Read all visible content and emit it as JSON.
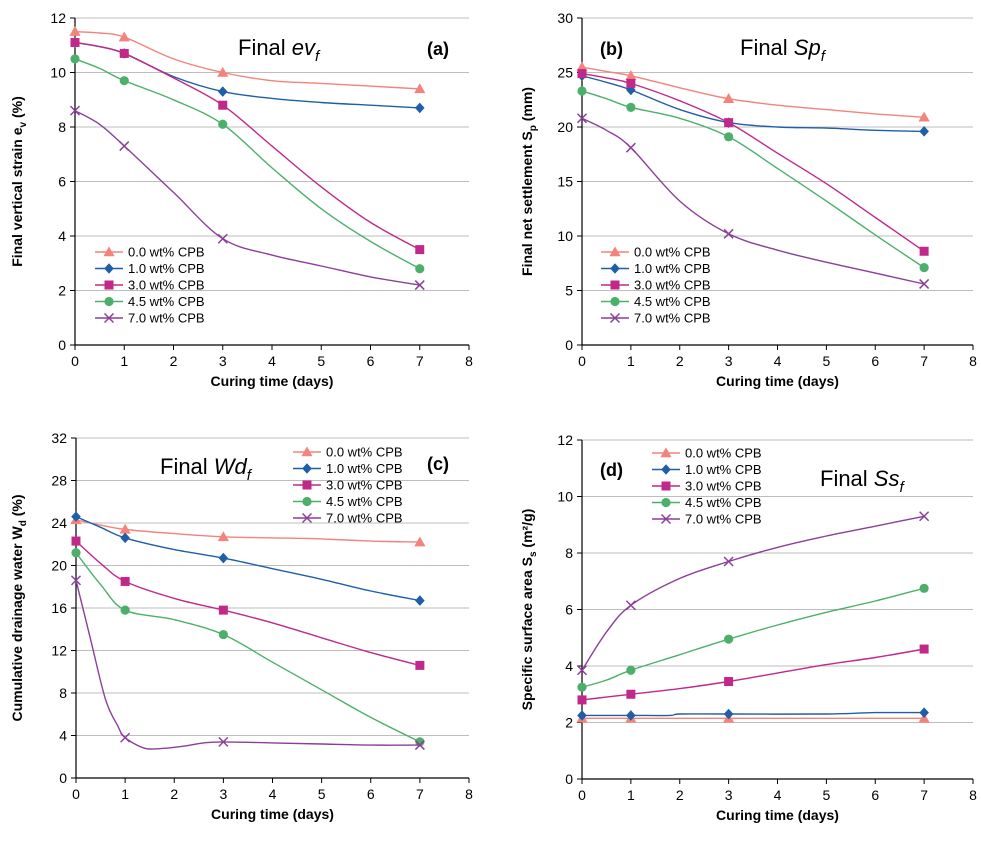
{
  "series_styles": [
    {
      "color": "#f4837b",
      "marker": "triangle"
    },
    {
      "color": "#1f5fa8",
      "marker": "diamond"
    },
    {
      "color": "#c0288a",
      "marker": "square"
    },
    {
      "color": "#4cb06a",
      "marker": "circle"
    },
    {
      "color": "#8b3f98",
      "marker": "x"
    }
  ],
  "chart_data": [
    {
      "type": "line",
      "panel": "(a)",
      "inset_title": {
        "prefix": "Final ",
        "main": "ev",
        "sub": "f"
      },
      "xlabel": "Curing time (days)",
      "ylabel": {
        "text": "Final vertical strain   e",
        "sub": "v",
        "tail": " (%)"
      },
      "xlim": [
        0,
        8
      ],
      "ylim": [
        0,
        12
      ],
      "xticks": [
        0,
        1,
        2,
        3,
        4,
        5,
        6,
        7,
        8
      ],
      "yticks": [
        0,
        2,
        4,
        6,
        8,
        10,
        12
      ],
      "grid": "horizontal",
      "legend_position": "bottom-left",
      "x": [
        0,
        1,
        3,
        7
      ],
      "series": [
        {
          "name": "0.0 wt% CPB",
          "values": [
            11.5,
            11.3,
            10.0,
            9.4
          ],
          "curve": [
            [
              0,
              11.5
            ],
            [
              0.5,
              11.45
            ],
            [
              1,
              11.3
            ],
            [
              2,
              10.5
            ],
            [
              3,
              10.0
            ],
            [
              4,
              9.7
            ],
            [
              5,
              9.6
            ],
            [
              6,
              9.5
            ],
            [
              7,
              9.4
            ]
          ]
        },
        {
          "name": "1.0 wt% CPB",
          "values": [
            11.1,
            10.7,
            9.3,
            8.7
          ],
          "curve": [
            [
              0,
              11.1
            ],
            [
              0.5,
              10.95
            ],
            [
              1,
              10.7
            ],
            [
              2,
              9.85
            ],
            [
              3,
              9.3
            ],
            [
              4,
              9.05
            ],
            [
              5,
              8.9
            ],
            [
              6,
              8.8
            ],
            [
              7,
              8.7
            ]
          ]
        },
        {
          "name": "3.0 wt% CPB",
          "values": [
            11.1,
            10.7,
            8.8,
            3.5
          ],
          "curve": [
            [
              0,
              11.1
            ],
            [
              0.5,
              10.95
            ],
            [
              1,
              10.7
            ],
            [
              2,
              9.8
            ],
            [
              3,
              8.8
            ],
            [
              4,
              7.3
            ],
            [
              5,
              5.8
            ],
            [
              6,
              4.5
            ],
            [
              7,
              3.5
            ]
          ]
        },
        {
          "name": "4.5 wt% CPB",
          "values": [
            10.5,
            9.7,
            8.1,
            2.8
          ],
          "curve": [
            [
              0,
              10.5
            ],
            [
              0.5,
              10.15
            ],
            [
              1,
              9.7
            ],
            [
              2,
              9.0
            ],
            [
              3,
              8.1
            ],
            [
              4,
              6.5
            ],
            [
              5,
              5.0
            ],
            [
              6,
              3.8
            ],
            [
              7,
              2.8
            ]
          ]
        },
        {
          "name": "7.0 wt% CPB",
          "values": [
            8.6,
            7.3,
            3.9,
            2.2
          ],
          "curve": [
            [
              0,
              8.6
            ],
            [
              0.5,
              8.1
            ],
            [
              1,
              7.3
            ],
            [
              2,
              5.6
            ],
            [
              3,
              3.9
            ],
            [
              4,
              3.3
            ],
            [
              5,
              2.9
            ],
            [
              6,
              2.5
            ],
            [
              7,
              2.2
            ]
          ]
        }
      ]
    },
    {
      "type": "line",
      "panel": "(b)",
      "inset_title": {
        "prefix": "Final ",
        "main": "Sp",
        "sub": "f"
      },
      "xlabel": "Curing time (days)",
      "ylabel": {
        "text": "Final net settlement   S",
        "sub": "p",
        "tail": " (mm)"
      },
      "xlim": [
        0,
        8
      ],
      "ylim": [
        0,
        30
      ],
      "xticks": [
        0,
        1,
        2,
        3,
        4,
        5,
        6,
        7,
        8
      ],
      "yticks": [
        0,
        5,
        10,
        15,
        20,
        25,
        30
      ],
      "grid": "horizontal",
      "legend_position": "bottom-left",
      "x": [
        0,
        1,
        3,
        7
      ],
      "series": [
        {
          "name": "0.0 wt% CPB",
          "values": [
            25.5,
            24.7,
            22.6,
            20.9
          ],
          "curve": [
            [
              0,
              25.5
            ],
            [
              0.5,
              25.1
            ],
            [
              1,
              24.7
            ],
            [
              2,
              23.6
            ],
            [
              3,
              22.6
            ],
            [
              4,
              22.0
            ],
            [
              5,
              21.6
            ],
            [
              6,
              21.2
            ],
            [
              7,
              20.9
            ]
          ]
        },
        {
          "name": "1.0 wt% CPB",
          "values": [
            24.7,
            23.4,
            20.4,
            19.6
          ],
          "curve": [
            [
              0,
              24.7
            ],
            [
              0.5,
              24.1
            ],
            [
              1,
              23.4
            ],
            [
              2,
              21.6
            ],
            [
              3,
              20.4
            ],
            [
              4,
              20.0
            ],
            [
              5,
              19.9
            ],
            [
              6,
              19.7
            ],
            [
              7,
              19.6
            ]
          ]
        },
        {
          "name": "3.0 wt% CPB",
          "values": [
            24.9,
            24.0,
            20.4,
            8.6
          ],
          "curve": [
            [
              0,
              24.9
            ],
            [
              0.5,
              24.5
            ],
            [
              1,
              24.0
            ],
            [
              2,
              22.4
            ],
            [
              3,
              20.4
            ],
            [
              4,
              17.6
            ],
            [
              5,
              14.8
            ],
            [
              6,
              11.7
            ],
            [
              7,
              8.6
            ]
          ]
        },
        {
          "name": "4.5 wt% CPB",
          "values": [
            23.3,
            21.8,
            19.1,
            7.1
          ],
          "curve": [
            [
              0,
              23.3
            ],
            [
              0.5,
              22.6
            ],
            [
              1,
              21.8
            ],
            [
              2,
              20.8
            ],
            [
              3,
              19.1
            ],
            [
              4,
              16.2
            ],
            [
              5,
              13.2
            ],
            [
              6,
              10.1
            ],
            [
              7,
              7.1
            ]
          ]
        },
        {
          "name": "7.0 wt% CPB",
          "values": [
            20.8,
            18.1,
            10.2,
            5.6
          ],
          "curve": [
            [
              0,
              20.8
            ],
            [
              0.5,
              19.7
            ],
            [
              1,
              18.1
            ],
            [
              2,
              13.2
            ],
            [
              3,
              10.2
            ],
            [
              4,
              8.7
            ],
            [
              5,
              7.6
            ],
            [
              6,
              6.6
            ],
            [
              7,
              5.6
            ]
          ]
        }
      ]
    },
    {
      "type": "line",
      "panel": "(c)",
      "inset_title": {
        "prefix": "Final ",
        "main": "Wd",
        "sub": "f"
      },
      "xlabel": "Curing time (days)",
      "ylabel": {
        "text": "Cumulative drainage water W",
        "sub": "d",
        "tail": " (%)"
      },
      "xlim": [
        0,
        8
      ],
      "ylim": [
        0,
        32
      ],
      "xticks": [
        0,
        1,
        2,
        3,
        4,
        5,
        6,
        7,
        8
      ],
      "yticks": [
        0,
        4,
        8,
        12,
        16,
        20,
        24,
        28,
        32
      ],
      "grid": "horizontal",
      "legend_position": "top-right",
      "x": [
        0,
        1,
        3,
        7
      ],
      "series": [
        {
          "name": "0.0 wt% CPB",
          "values": [
            24.3,
            23.4,
            22.7,
            22.2
          ],
          "curve": [
            [
              0,
              24.3
            ],
            [
              0.5,
              23.8
            ],
            [
              1,
              23.4
            ],
            [
              2,
              23.0
            ],
            [
              3,
              22.7
            ],
            [
              4,
              22.6
            ],
            [
              5,
              22.5
            ],
            [
              6,
              22.3
            ],
            [
              7,
              22.2
            ]
          ]
        },
        {
          "name": "1.0 wt% CPB",
          "values": [
            24.6,
            22.6,
            20.7,
            16.7
          ],
          "curve": [
            [
              0,
              24.6
            ],
            [
              0.5,
              23.6
            ],
            [
              1,
              22.6
            ],
            [
              2,
              21.5
            ],
            [
              3,
              20.7
            ],
            [
              4,
              19.7
            ],
            [
              5,
              18.7
            ],
            [
              6,
              17.6
            ],
            [
              7,
              16.7
            ]
          ]
        },
        {
          "name": "3.0 wt% CPB",
          "values": [
            22.3,
            18.5,
            15.8,
            10.6
          ],
          "curve": [
            [
              0,
              22.3
            ],
            [
              0.5,
              20.2
            ],
            [
              1,
              18.5
            ],
            [
              2,
              16.9
            ],
            [
              3,
              15.8
            ],
            [
              4,
              14.6
            ],
            [
              5,
              13.2
            ],
            [
              6,
              11.8
            ],
            [
              7,
              10.6
            ]
          ]
        },
        {
          "name": "4.5 wt% CPB",
          "values": [
            21.2,
            15.8,
            13.5,
            3.4
          ],
          "curve": [
            [
              0,
              21.2
            ],
            [
              0.5,
              18.2
            ],
            [
              1,
              15.8
            ],
            [
              2,
              14.9
            ],
            [
              3,
              13.5
            ],
            [
              4,
              10.9
            ],
            [
              5,
              8.3
            ],
            [
              6,
              5.7
            ],
            [
              7,
              3.4
            ]
          ]
        },
        {
          "name": "7.0 wt% CPB",
          "values": [
            18.6,
            3.8,
            3.4,
            3.1
          ],
          "curve": [
            [
              0,
              18.6
            ],
            [
              0.3,
              13.0
            ],
            [
              0.6,
              7.4
            ],
            [
              0.85,
              4.9
            ],
            [
              1,
              3.8
            ],
            [
              1.4,
              2.8
            ],
            [
              1.8,
              2.8
            ],
            [
              2.2,
              3.0
            ],
            [
              2.6,
              3.3
            ],
            [
              3,
              3.4
            ],
            [
              4,
              3.3
            ],
            [
              5,
              3.2
            ],
            [
              6,
              3.1
            ],
            [
              7,
              3.1
            ]
          ]
        }
      ]
    },
    {
      "type": "line",
      "panel": "(d)",
      "inset_title": {
        "prefix": "Final ",
        "main": "Ss",
        "sub": "f"
      },
      "xlabel": "Curing time (days)",
      "ylabel": {
        "text": "Specific surface area   S",
        "sub": "s",
        "tail": " (m²/g)"
      },
      "xlim": [
        0,
        8
      ],
      "ylim": [
        0,
        12
      ],
      "xticks": [
        0,
        1,
        2,
        3,
        4,
        5,
        6,
        7,
        8
      ],
      "yticks": [
        0,
        2,
        4,
        6,
        8,
        10,
        12
      ],
      "grid": "horizontal",
      "legend_position": "top-left",
      "x": [
        0,
        1,
        3,
        7
      ],
      "series": [
        {
          "name": "0.0 wt% CPB",
          "values": [
            2.15,
            2.15,
            2.15,
            2.15
          ],
          "curve": [
            [
              0,
              2.15
            ],
            [
              1,
              2.15
            ],
            [
              2,
              2.15
            ],
            [
              3,
              2.15
            ],
            [
              4,
              2.15
            ],
            [
              5,
              2.15
            ],
            [
              6,
              2.15
            ],
            [
              7,
              2.15
            ]
          ]
        },
        {
          "name": "1.0 wt% CPB",
          "values": [
            2.25,
            2.25,
            2.3,
            2.35
          ],
          "curve": [
            [
              0,
              2.25
            ],
            [
              1,
              2.25
            ],
            [
              1.8,
              2.25
            ],
            [
              2,
              2.3
            ],
            [
              3,
              2.3
            ],
            [
              5,
              2.3
            ],
            [
              6,
              2.35
            ],
            [
              7,
              2.35
            ]
          ]
        },
        {
          "name": "3.0 wt% CPB",
          "values": [
            2.8,
            3.0,
            3.45,
            4.6
          ],
          "curve": [
            [
              0,
              2.8
            ],
            [
              0.5,
              2.9
            ],
            [
              1,
              3.0
            ],
            [
              2,
              3.2
            ],
            [
              3,
              3.45
            ],
            [
              4,
              3.75
            ],
            [
              5,
              4.05
            ],
            [
              6,
              4.3
            ],
            [
              7,
              4.6
            ]
          ]
        },
        {
          "name": "4.5 wt% CPB",
          "values": [
            3.25,
            3.85,
            4.95,
            6.75
          ],
          "curve": [
            [
              0,
              3.25
            ],
            [
              0.5,
              3.5
            ],
            [
              1,
              3.85
            ],
            [
              2,
              4.4
            ],
            [
              3,
              4.95
            ],
            [
              4,
              5.45
            ],
            [
              5,
              5.9
            ],
            [
              6,
              6.3
            ],
            [
              7,
              6.75
            ]
          ]
        },
        {
          "name": "7.0 wt% CPB",
          "values": [
            3.85,
            6.15,
            7.7,
            9.3
          ],
          "curve": [
            [
              0,
              3.85
            ],
            [
              0.5,
              5.2
            ],
            [
              1,
              6.15
            ],
            [
              2,
              7.1
            ],
            [
              3,
              7.7
            ],
            [
              4,
              8.2
            ],
            [
              5,
              8.6
            ],
            [
              6,
              8.95
            ],
            [
              7,
              9.3
            ]
          ]
        }
      ]
    }
  ]
}
